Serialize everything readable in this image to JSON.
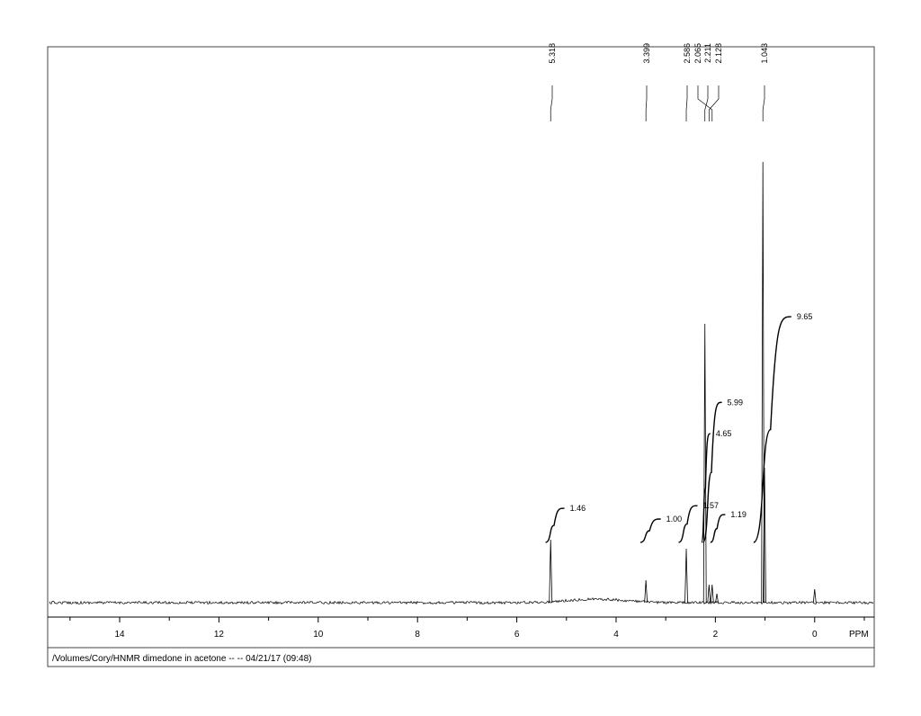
{
  "chart_data": {
    "type": "nmr",
    "x_unit": "PPM",
    "xlim": [
      15.45,
      -1.2
    ],
    "xticks": [
      14,
      12,
      10,
      8,
      6,
      4,
      2,
      0
    ],
    "xminor": [
      15,
      13,
      11,
      9,
      7,
      5,
      3,
      1,
      -1
    ],
    "ylim": [
      0,
      100
    ],
    "peaks": {
      "ppm": [
        5.318,
        3.399,
        2.586,
        2.211,
        2.128,
        2.065,
        1.97,
        1.043,
        1.01,
        0.0
      ],
      "intensity": [
        14,
        5,
        12,
        62,
        4,
        4,
        2,
        98,
        30,
        3
      ]
    },
    "peak_labels": [
      5.318,
      3.399,
      2.586,
      2.065,
      2.211,
      2.128,
      1.043
    ],
    "integrals": {
      "from": [
        5.42,
        3.51,
        2.74,
        2.28,
        2.25,
        2.1,
        1.23
      ],
      "to": [
        5.04,
        3.1,
        2.36,
        2.1,
        1.87,
        1.8,
        0.47
      ],
      "values": [
        1.46,
        1.0,
        1.57,
        4.65,
        5.99,
        1.19,
        9.65
      ],
      "value_labels": [
        "1.46",
        "1.00",
        "1.57",
        "4.65",
        "5.99",
        "1.19",
        "9.65"
      ]
    },
    "footer": "/Volumes/Cory/HNMR dimedone in acetone --  -- 04/21/17  (09:48)",
    "color": "#000000"
  }
}
